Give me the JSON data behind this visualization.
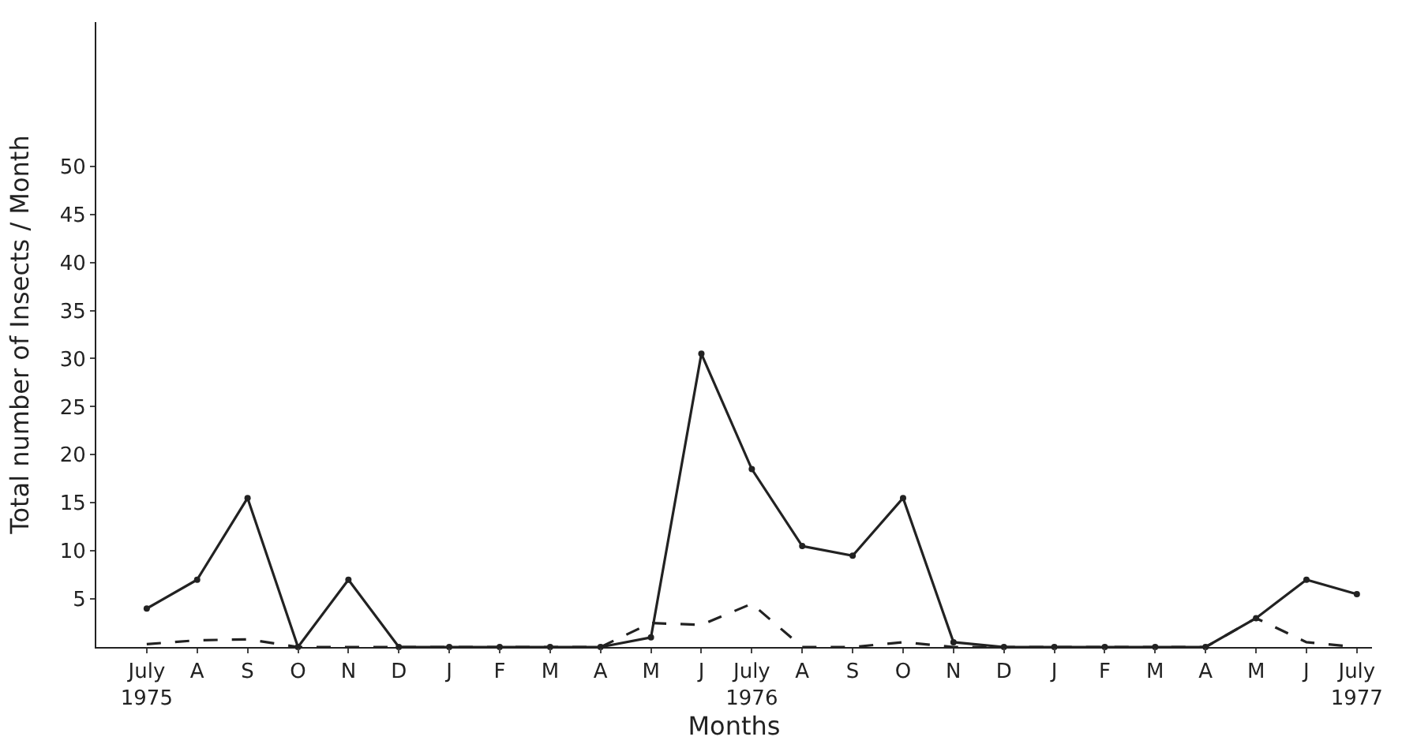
{
  "chart_data": {
    "type": "line",
    "ylabel": "Total number of Insects / Month",
    "xlabel": "Months",
    "categories": [
      "July\n1975",
      "A",
      "S",
      "O",
      "N",
      "D",
      "J",
      "F",
      "M",
      "A",
      "M",
      "J",
      "July\n1976",
      "A",
      "S",
      "O",
      "N",
      "D",
      "J",
      "F",
      "M",
      "A",
      "M",
      "J",
      "July\n1977"
    ],
    "series": [
      {
        "color": "#222222",
        "line_style": "solid",
        "marker": "circle",
        "values": [
          4,
          7,
          15.5,
          0,
          7,
          0,
          0,
          0,
          0,
          0,
          1,
          30.5,
          18.5,
          10.5,
          9.5,
          15.5,
          0.5,
          0,
          0,
          0,
          0,
          0,
          3,
          7,
          5.5
        ]
      },
      {
        "color": "#222222",
        "line_style": "dashed",
        "marker": "none",
        "values": [
          0.3,
          0.7,
          0.8,
          0,
          0,
          0,
          0,
          0,
          0,
          0,
          2.5,
          2.3,
          4.5,
          0,
          0,
          0.5,
          0,
          0,
          0,
          0,
          0,
          0,
          3,
          0.5,
          0
        ]
      }
    ],
    "ylim": [
      0,
      65
    ],
    "yticks": [
      5,
      10,
      15,
      20,
      25,
      30,
      35,
      40,
      45,
      50
    ]
  }
}
